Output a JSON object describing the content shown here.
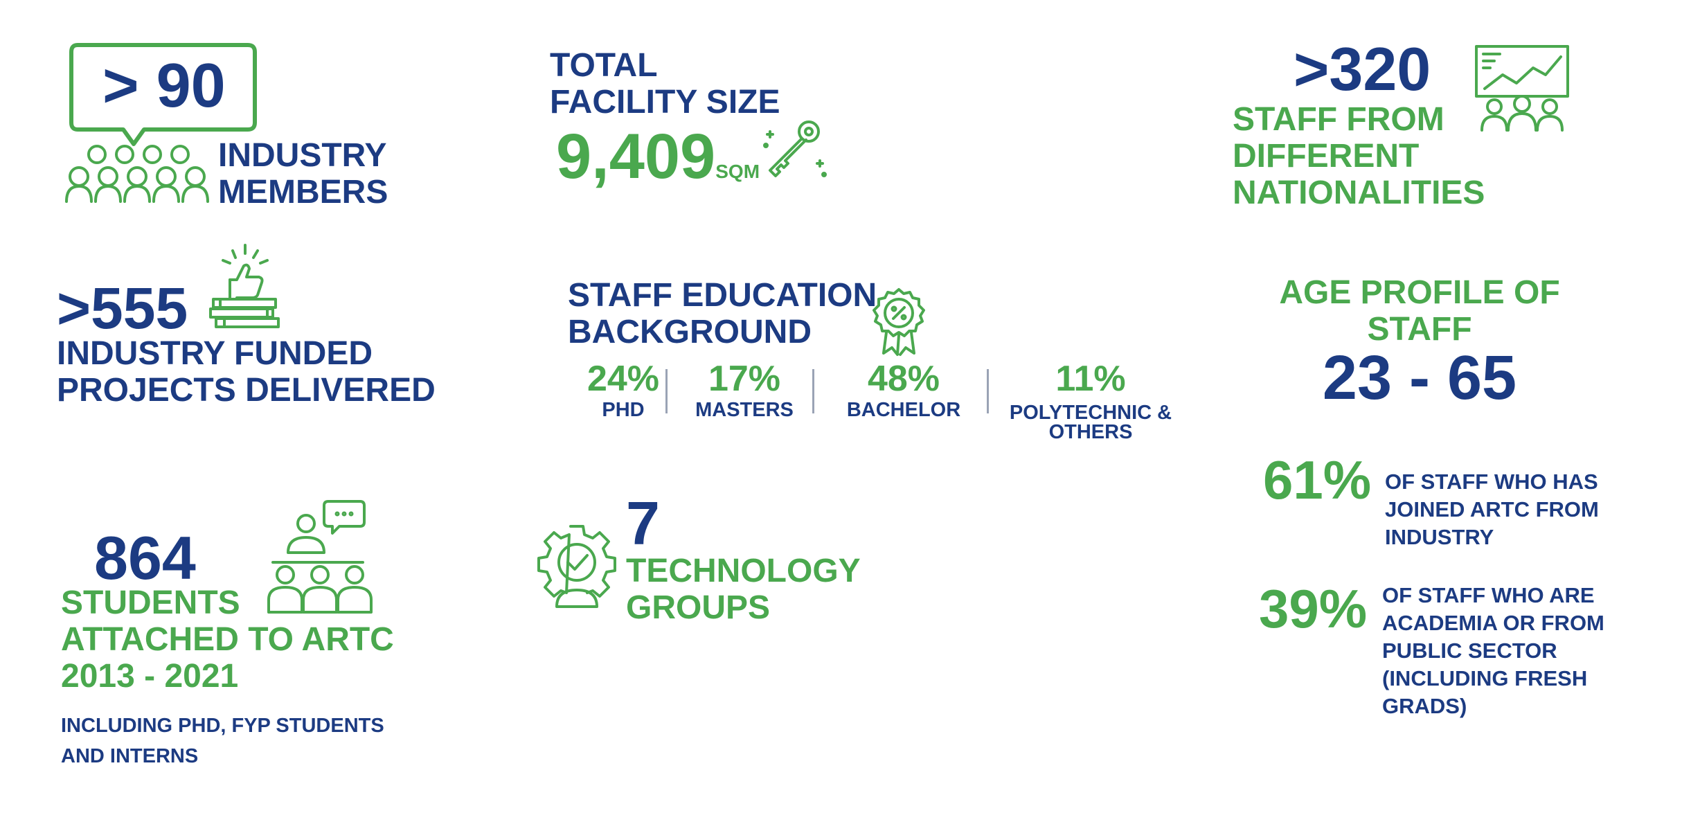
{
  "colors": {
    "blue": "#1c3b82",
    "green": "#4aa84e"
  },
  "industry_members": {
    "value": "> 90",
    "label_lines": [
      "INDUSTRY",
      "MEMBERS"
    ],
    "icon": "people-group-icon"
  },
  "facility": {
    "title_lines": [
      "TOTAL",
      "FACILITY SIZE"
    ],
    "value": "9,409",
    "unit": "SQM",
    "icon": "key-icon"
  },
  "nationalities": {
    "value": ">320",
    "label_lines": [
      "STAFF FROM",
      "DIFFERENT",
      "NATIONALITIES"
    ],
    "icon": "presentation-icon"
  },
  "projects": {
    "value": ">555",
    "label_lines": [
      "INDUSTRY FUNDED",
      "PROJECTS DELIVERED"
    ],
    "icon": "thumbs-up-money-icon"
  },
  "education": {
    "title_lines": [
      "STAFF EDUCATION",
      "BACKGROUND"
    ],
    "icon": "certificate-badge-icon",
    "items": [
      {
        "percent": "24%",
        "label_lines": [
          "PHD"
        ]
      },
      {
        "percent": "17%",
        "label_lines": [
          "MASTERS"
        ]
      },
      {
        "percent": "48%",
        "label_lines": [
          "BACHELOR"
        ]
      },
      {
        "percent": "11%",
        "label_lines": [
          "POLYTECHNIC &",
          "OTHERS"
        ]
      }
    ]
  },
  "age_profile": {
    "title_lines": [
      "AGE PROFILE OF",
      "STAFF"
    ],
    "range": "23 - 65"
  },
  "staff_origin": [
    {
      "percent": "61%",
      "lines": [
        "OF STAFF WHO HAS",
        "JOINED ARTC FROM",
        "INDUSTRY"
      ]
    },
    {
      "percent": "39%",
      "lines": [
        "OF STAFF WHO ARE",
        "ACADEMIA OR FROM",
        "PUBLIC SECTOR",
        "(INCLUDING FRESH",
        "GRADS)"
      ]
    }
  ],
  "students": {
    "value": "864",
    "label_lines": [
      "STUDENTS",
      "ATTACHED TO ARTC",
      "2013 - 2021"
    ],
    "note_lines": [
      "INCLUDING PHD, FYP STUDENTS",
      "AND INTERNS"
    ],
    "icon": "classroom-icon"
  },
  "technology_groups": {
    "value": "7",
    "label_lines": [
      "TECHNOLOGY",
      "GROUPS"
    ],
    "icon": "gear-person-icon"
  }
}
